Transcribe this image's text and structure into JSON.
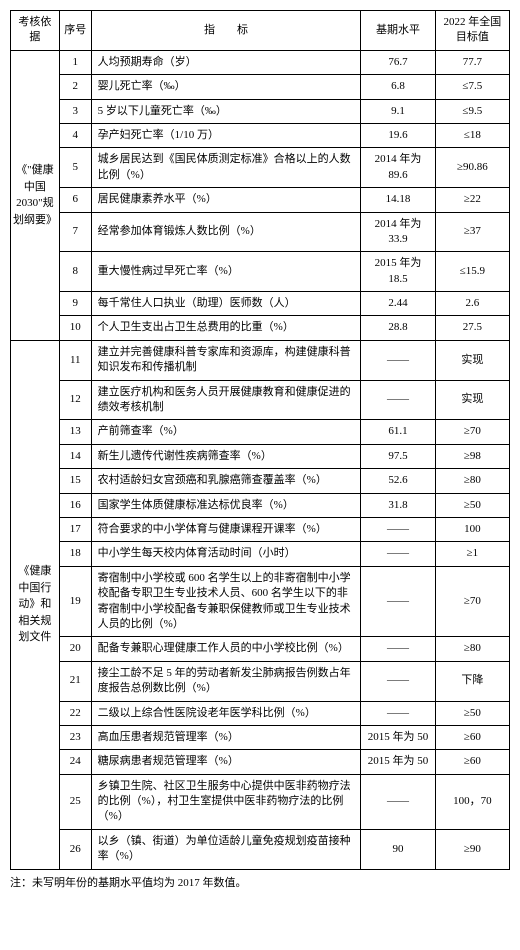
{
  "headers": {
    "basis": "考核依据",
    "seq": "序号",
    "indicator": "指　　标",
    "base": "基期水平",
    "target": "2022 年全国目标值"
  },
  "group1": {
    "title": "《\"健康中国2030\"规划纲要》",
    "rows": [
      {
        "n": "1",
        "ind": "人均预期寿命（岁）",
        "b": "76.7",
        "t": "77.7"
      },
      {
        "n": "2",
        "ind": "婴儿死亡率（‰）",
        "b": "6.8",
        "t": "≤7.5"
      },
      {
        "n": "3",
        "ind": "5 岁以下儿童死亡率（‰）",
        "b": "9.1",
        "t": "≤9.5"
      },
      {
        "n": "4",
        "ind": "孕产妇死亡率（1/10 万）",
        "b": "19.6",
        "t": "≤18"
      },
      {
        "n": "5",
        "ind": "城乡居民达到《国民体质测定标准》合格以上的人数比例（%）",
        "b": "2014 年为 89.6",
        "t": "≥90.86"
      },
      {
        "n": "6",
        "ind": "居民健康素养水平（%）",
        "b": "14.18",
        "t": "≥22"
      },
      {
        "n": "7",
        "ind": "经常参加体育锻炼人数比例（%）",
        "b": "2014 年为 33.9",
        "t": "≥37"
      },
      {
        "n": "8",
        "ind": "重大慢性病过早死亡率（%）",
        "b": "2015 年为 18.5",
        "t": "≤15.9"
      },
      {
        "n": "9",
        "ind": "每千常住人口执业（助理）医师数（人）",
        "b": "2.44",
        "t": "2.6"
      },
      {
        "n": "10",
        "ind": "个人卫生支出占卫生总费用的比重（%）",
        "b": "28.8",
        "t": "27.5"
      }
    ]
  },
  "group2": {
    "title": "《健康中国行动》和相关规划文件",
    "rows": [
      {
        "n": "11",
        "ind": "建立并完善健康科普专家库和资源库，构建健康科普知识发布和传播机制",
        "b": "——",
        "t": "实现"
      },
      {
        "n": "12",
        "ind": "建立医疗机构和医务人员开展健康教育和健康促进的绩效考核机制",
        "b": "——",
        "t": "实现"
      },
      {
        "n": "13",
        "ind": "产前筛查率（%）",
        "b": "61.1",
        "t": "≥70"
      },
      {
        "n": "14",
        "ind": "新生儿遗传代谢性疾病筛查率（%）",
        "b": "97.5",
        "t": "≥98"
      },
      {
        "n": "15",
        "ind": "农村适龄妇女宫颈癌和乳腺癌筛查覆盖率（%）",
        "b": "52.6",
        "t": "≥80"
      },
      {
        "n": "16",
        "ind": "国家学生体质健康标准达标优良率（%）",
        "b": "31.8",
        "t": "≥50"
      },
      {
        "n": "17",
        "ind": "符合要求的中小学体育与健康课程开课率（%）",
        "b": "——",
        "t": "100"
      },
      {
        "n": "18",
        "ind": "中小学生每天校内体育活动时间（小时）",
        "b": "——",
        "t": "≥1"
      },
      {
        "n": "19",
        "ind": "寄宿制中小学校或 600 名学生以上的非寄宿制中小学校配备专职卫生专业技术人员、600 名学生以下的非寄宿制中小学校配备专兼职保健教师或卫生专业技术人员的比例（%）",
        "b": "——",
        "t": "≥70"
      },
      {
        "n": "20",
        "ind": "配备专兼职心理健康工作人员的中小学校比例（%）",
        "b": "——",
        "t": "≥80"
      },
      {
        "n": "21",
        "ind": "接尘工龄不足 5 年的劳动者新发尘肺病报告例数占年度报告总例数比例（%）",
        "b": "——",
        "t": "下降"
      },
      {
        "n": "22",
        "ind": "二级以上综合性医院设老年医学科比例（%）",
        "b": "——",
        "t": "≥50"
      },
      {
        "n": "23",
        "ind": "高血压患者规范管理率（%）",
        "b": "2015 年为 50",
        "t": "≥60"
      },
      {
        "n": "24",
        "ind": "糖尿病患者规范管理率（%）",
        "b": "2015 年为 50",
        "t": "≥60"
      },
      {
        "n": "25",
        "ind": "乡镇卫生院、社区卫生服务中心提供中医非药物疗法的比例（%），村卫生室提供中医非药物疗法的比例（%）",
        "b": "——",
        "t": "100，70"
      },
      {
        "n": "26",
        "ind": "以乡（镇、街道）为单位适龄儿童免疫规划疫苗接种率（%）",
        "b": "90",
        "t": "≥90"
      }
    ]
  },
  "note": "注：未写明年份的基期水平值均为 2017 年数值。"
}
